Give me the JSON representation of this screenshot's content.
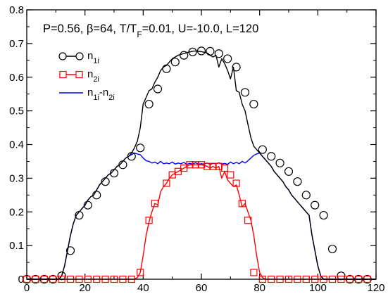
{
  "chart_data": {
    "type": "line",
    "title": "",
    "annotation": "P=0.56, β=64, T/T_F=0.01, U=-10.0, L=120",
    "xlabel": "",
    "ylabel": "",
    "xlim": [
      0,
      120
    ],
    "ylim": [
      0,
      0.8
    ],
    "x_ticks": [
      0,
      20,
      40,
      60,
      80,
      100,
      120
    ],
    "y_ticks": [
      0,
      0.1,
      0.2,
      0.3,
      0.4,
      0.5,
      0.6,
      0.7,
      0.8
    ],
    "grid": false,
    "legend_position": "top-left",
    "series": [
      {
        "name": "n_1i",
        "name_main": "n",
        "name_sub": "1i",
        "color": "#000000",
        "marker": "circle",
        "x": [
          0,
          3,
          6,
          9,
          12,
          15,
          18,
          21,
          24,
          27,
          30,
          33,
          36,
          39,
          42,
          45,
          48,
          51,
          54,
          57,
          60,
          63,
          66,
          69,
          72,
          75,
          78,
          81,
          84,
          87,
          90,
          93,
          96,
          99,
          102,
          105,
          108,
          111,
          114,
          117
        ],
        "values": [
          0,
          0,
          0,
          0,
          0.01,
          0.085,
          0.19,
          0.22,
          0.25,
          0.29,
          0.315,
          0.34,
          0.365,
          0.39,
          0.52,
          0.565,
          0.625,
          0.645,
          0.665,
          0.675,
          0.678,
          0.677,
          0.67,
          0.655,
          0.63,
          0.555,
          0.52,
          0.385,
          0.365,
          0.345,
          0.32,
          0.29,
          0.25,
          0.22,
          0.19,
          0.09,
          0.01,
          0,
          0,
          0
        ],
        "curve_x": [
          0,
          11,
          12,
          13,
          14,
          15,
          16,
          17,
          18,
          19,
          20,
          21,
          22,
          23,
          24,
          25,
          26,
          27,
          28,
          29,
          30,
          31,
          32,
          33,
          34,
          35,
          36,
          37,
          38,
          39,
          40,
          41,
          42,
          43,
          44,
          45,
          46,
          47,
          48,
          49,
          50,
          51,
          52,
          53,
          54,
          55,
          56,
          57,
          58,
          59,
          60,
          61,
          62,
          63,
          64,
          65,
          66,
          67,
          68,
          69,
          70,
          71,
          72,
          73,
          74,
          75,
          76,
          77,
          78,
          79,
          80,
          81,
          82,
          83,
          84,
          85,
          86,
          87,
          88,
          89,
          90,
          91,
          92,
          93,
          94,
          95,
          96,
          97,
          98,
          99,
          100,
          101,
          102,
          103,
          104,
          105,
          106,
          107,
          108,
          109,
          120
        ],
        "curve_y": [
          0,
          0,
          0.01,
          0.04,
          0.085,
          0.13,
          0.165,
          0.19,
          0.2,
          0.21,
          0.22,
          0.235,
          0.245,
          0.25,
          0.265,
          0.28,
          0.29,
          0.3,
          0.31,
          0.315,
          0.325,
          0.335,
          0.34,
          0.35,
          0.36,
          0.365,
          0.375,
          0.39,
          0.41,
          0.45,
          0.52,
          0.54,
          0.56,
          0.565,
          0.585,
          0.6,
          0.62,
          0.63,
          0.635,
          0.645,
          0.655,
          0.66,
          0.665,
          0.668,
          0.67,
          0.673,
          0.675,
          0.677,
          0.678,
          0.677,
          0.676,
          0.674,
          0.672,
          0.665,
          0.66,
          0.665,
          0.63,
          0.655,
          0.64,
          0.62,
          0.595,
          0.63,
          0.56,
          0.555,
          0.52,
          0.5,
          0.46,
          0.42,
          0.395,
          0.385,
          0.375,
          0.365,
          0.355,
          0.345,
          0.335,
          0.32,
          0.31,
          0.3,
          0.29,
          0.275,
          0.265,
          0.25,
          0.24,
          0.23,
          0.22,
          0.21,
          0.2,
          0.19,
          0.13,
          0.085,
          0.04,
          0.01,
          0,
          0,
          0,
          0,
          0,
          0,
          0,
          0,
          0
        ]
      },
      {
        "name": "n_2i",
        "name_main": "n",
        "name_sub": "2i",
        "color": "#ff0000",
        "marker": "square",
        "x": [
          0,
          3,
          6,
          9,
          12,
          15,
          18,
          21,
          24,
          27,
          30,
          33,
          36,
          39,
          42,
          44,
          48,
          50,
          52,
          54,
          56,
          58,
          60,
          62,
          64,
          66,
          68,
          70,
          72,
          74,
          76,
          78,
          81,
          84,
          87,
          90,
          93,
          96,
          99,
          102,
          105,
          108,
          111,
          114,
          117
        ],
        "values": [
          0,
          0,
          0,
          0,
          0,
          0,
          0,
          0,
          0,
          0,
          0,
          0,
          0,
          0.02,
          0.175,
          0.225,
          0.285,
          0.31,
          0.32,
          0.33,
          0.34,
          0.34,
          0.34,
          0.335,
          0.335,
          0.335,
          0.33,
          0.31,
          0.285,
          0.225,
          0.175,
          0.02,
          0,
          0,
          0,
          0,
          0,
          0,
          0,
          0,
          0,
          0,
          0,
          0,
          0
        ],
        "curve_x": [
          0,
          37,
          38,
          39,
          40,
          41,
          42,
          43,
          44,
          45,
          46,
          47,
          48,
          49,
          50,
          51,
          52,
          53,
          54,
          55,
          56,
          57,
          58,
          59,
          60,
          61,
          62,
          63,
          64,
          65,
          66,
          67,
          68,
          69,
          70,
          71,
          72,
          73,
          74,
          75,
          76,
          77,
          78,
          79,
          80,
          81,
          82,
          120
        ],
        "curve_y": [
          0,
          0,
          0.005,
          0.02,
          0.07,
          0.13,
          0.17,
          0.2,
          0.225,
          0.22,
          0.26,
          0.275,
          0.285,
          0.3,
          0.31,
          0.315,
          0.32,
          0.325,
          0.33,
          0.335,
          0.34,
          0.34,
          0.34,
          0.34,
          0.34,
          0.338,
          0.335,
          0.33,
          0.335,
          0.33,
          0.335,
          0.3,
          0.32,
          0.295,
          0.285,
          0.275,
          0.28,
          0.25,
          0.215,
          0.225,
          0.2,
          0.175,
          0.13,
          0.07,
          0.02,
          0.005,
          0,
          0
        ]
      },
      {
        "name": "n_1i-n_2i",
        "name_part1": "n",
        "name_sub1": "1i",
        "name_part2": "-n",
        "name_sub2": "2i",
        "color": "#0000ff",
        "marker": "none",
        "curve_x": [
          0,
          11,
          12,
          13,
          14,
          15,
          16,
          17,
          18,
          19,
          20,
          21,
          22,
          23,
          24,
          25,
          26,
          27,
          28,
          29,
          30,
          31,
          32,
          33,
          34,
          35,
          36,
          37,
          38,
          39,
          40,
          41,
          42,
          43,
          44,
          45,
          46,
          47,
          48,
          49,
          50,
          51,
          52,
          53,
          54,
          55,
          56,
          57,
          58,
          59,
          60,
          61,
          62,
          63,
          64,
          65,
          66,
          67,
          68,
          69,
          70,
          71,
          72,
          73,
          74,
          75,
          76,
          77,
          78,
          79,
          80,
          81,
          82,
          83,
          84,
          85,
          86,
          87,
          88,
          89,
          90,
          91,
          92,
          93,
          94,
          95,
          96,
          97,
          98,
          99,
          100,
          101,
          102,
          103,
          104,
          105,
          106,
          107,
          108,
          109,
          120
        ],
        "curve_y": [
          0,
          0,
          0.01,
          0.04,
          0.085,
          0.13,
          0.165,
          0.19,
          0.2,
          0.21,
          0.22,
          0.235,
          0.245,
          0.25,
          0.265,
          0.28,
          0.29,
          0.3,
          0.31,
          0.315,
          0.325,
          0.335,
          0.34,
          0.35,
          0.36,
          0.365,
          0.37,
          0.375,
          0.372,
          0.37,
          0.36,
          0.352,
          0.35,
          0.345,
          0.348,
          0.343,
          0.35,
          0.343,
          0.345,
          0.343,
          0.348,
          0.342,
          0.345,
          0.343,
          0.347,
          0.341,
          0.344,
          0.342,
          0.346,
          0.342,
          0.343,
          0.342,
          0.345,
          0.341,
          0.344,
          0.343,
          0.346,
          0.342,
          0.344,
          0.341,
          0.348,
          0.343,
          0.347,
          0.343,
          0.35,
          0.345,
          0.352,
          0.36,
          0.368,
          0.372,
          0.375,
          0.365,
          0.355,
          0.345,
          0.335,
          0.32,
          0.31,
          0.3,
          0.29,
          0.275,
          0.265,
          0.25,
          0.24,
          0.23,
          0.22,
          0.21,
          0.2,
          0.19,
          0.13,
          0.085,
          0.04,
          0.01,
          0,
          0,
          0,
          0,
          0,
          0,
          0,
          0,
          0
        ]
      }
    ]
  }
}
